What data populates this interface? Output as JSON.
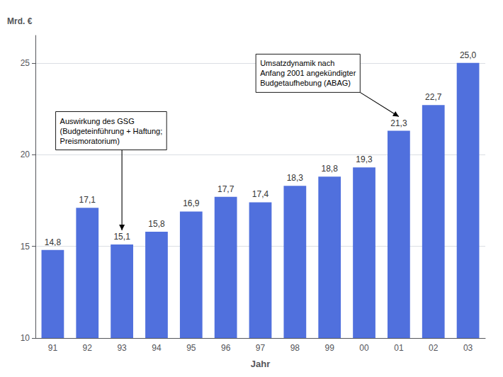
{
  "chart_data": {
    "type": "bar",
    "xlabel": "Jahr",
    "ylabel": "Mrd. €",
    "categories": [
      "91",
      "92",
      "93",
      "94",
      "95",
      "96",
      "97",
      "98",
      "99",
      "00",
      "01",
      "02",
      "03"
    ],
    "values": [
      14.8,
      17.1,
      15.1,
      15.8,
      16.9,
      17.7,
      17.4,
      18.3,
      18.8,
      19.3,
      21.3,
      22.7,
      25.0
    ],
    "value_labels": [
      "14,8",
      "17,1",
      "15,1",
      "15,8",
      "16,9",
      "17,7",
      "17,4",
      "18,3",
      "18,8",
      "19,3",
      "21,3",
      "22,7",
      "25,0"
    ],
    "data_labels": true,
    "ylim": [
      10,
      26.5
    ],
    "yticks": [
      10,
      15,
      20,
      25
    ],
    "grid": true,
    "annotations": [
      {
        "text": "Auswirkung des GSG\n(Budgeteinführung + Haftung;\nPreismoratorium)",
        "x": "93",
        "y": 15.1
      },
      {
        "text": "Umsatzdynamik nach\nAnfang 2001 angekündigter\nBudgetaufhebung (ABAG)",
        "x": "01",
        "y": 21.3
      }
    ]
  }
}
